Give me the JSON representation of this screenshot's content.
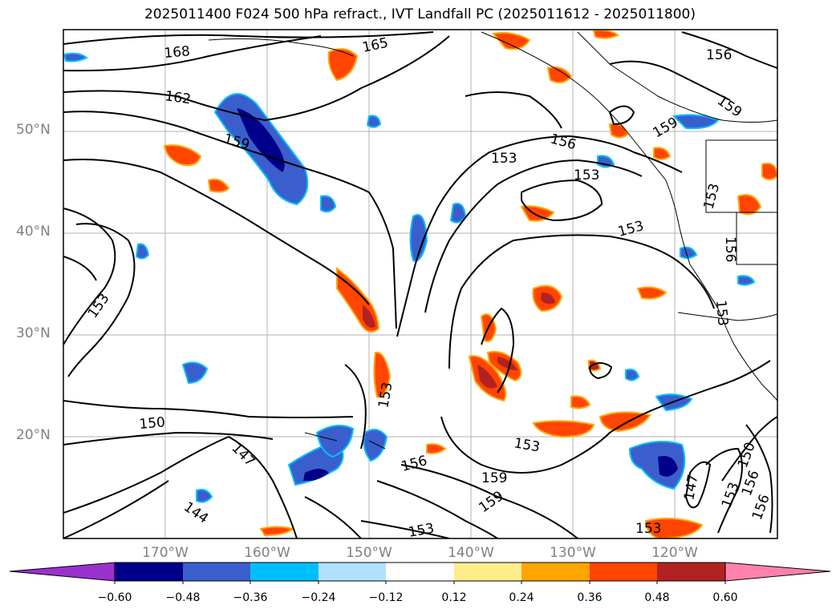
{
  "title": "2025011400 F024 500 hPa refract., IVT Landfall PC (2025011612 - 2025011800)",
  "lat_labels": [
    "50°N",
    "40°N",
    "30°N",
    "20°N"
  ],
  "lon_labels": [
    "170°W",
    "160°W",
    "150°W",
    "140°W",
    "130°W",
    "120°W"
  ],
  "contour_labels": [
    "168",
    "165",
    "162",
    "159",
    "159",
    "156",
    "156",
    "159",
    "153",
    "153",
    "153",
    "153",
    "156",
    "153",
    "153",
    "150",
    "147",
    "144",
    "156",
    "153",
    "159",
    "159",
    "153",
    "147",
    "153",
    "156",
    "150",
    "156"
  ],
  "colorbar": {
    "labels": [
      "−0.60",
      "−0.48",
      "−0.36",
      "−0.24",
      "−0.12",
      "0.12",
      "0.24",
      "0.36",
      "0.48",
      "0.60"
    ],
    "colors": [
      "#9932cc",
      "#00008b",
      "#3a5fcd",
      "#00bfff",
      "#b0e2ff",
      "#ffffff",
      "#ffec8b",
      "#ffa500",
      "#ff4500",
      "#b22222",
      "#ff82ab"
    ]
  },
  "map_data": {
    "extent_lon": [
      -180,
      -110
    ],
    "extent_lat": [
      10,
      60
    ],
    "field": "500 hPa refractivity contours with IVT landfall PC shading"
  }
}
